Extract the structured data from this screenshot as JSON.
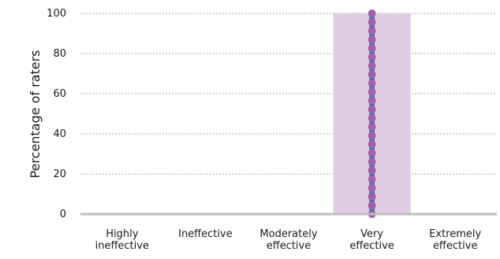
{
  "chart_data": {
    "type": "bar",
    "ylabel": "Percentage of raters",
    "xlabel": "",
    "ylim": [
      0,
      100
    ],
    "yticks": [
      0,
      20,
      40,
      60,
      80,
      100
    ],
    "grid": true,
    "categories": [
      [
        "Highly",
        "ineffective"
      ],
      [
        "Ineffective"
      ],
      [
        "Moderately",
        "effective"
      ],
      [
        "Very",
        "effective"
      ],
      [
        "Extremely",
        "effective"
      ]
    ],
    "values": [
      0,
      0,
      0,
      100,
      0
    ],
    "highlight_bar_color": "#e2cde6",
    "marker_line": {
      "category_index": 3,
      "line_color": "#2a86a5",
      "marker_color": "#a35fae"
    },
    "colors": {
      "grid": "#a6a6a6",
      "axis": "#bfbfbf",
      "text": "#1a1a1a"
    }
  }
}
